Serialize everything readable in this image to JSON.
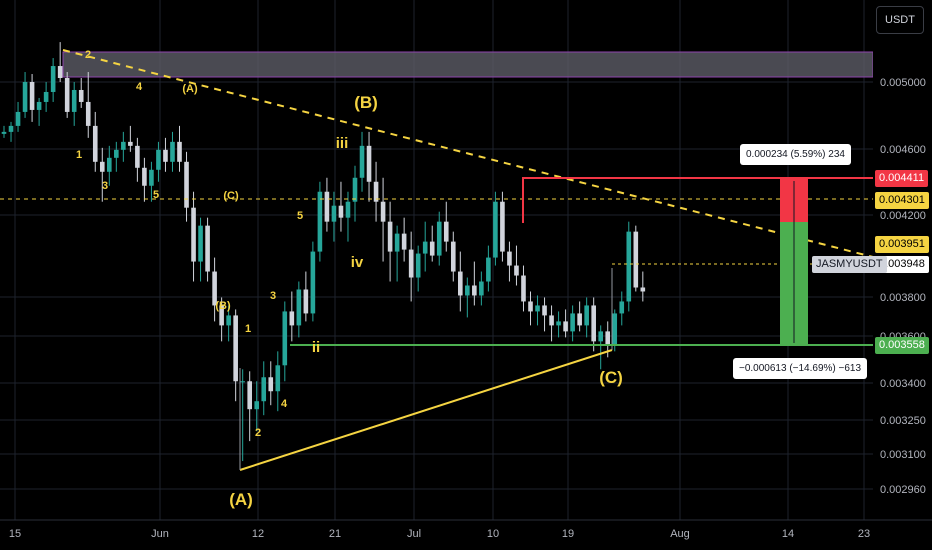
{
  "currency_button": "USDT",
  "symbol_label": "JASMYUSDT",
  "price_axis_ticks": [
    "0.005000",
    "0.004600",
    "0.004200",
    "0.003800",
    "0.003600",
    "0.003400",
    "0.003250",
    "0.003100",
    "0.002960"
  ],
  "time_axis_ticks": [
    "15",
    "Jun",
    "12",
    "21",
    "Jul",
    "10",
    "19",
    "Aug",
    "14",
    "23"
  ],
  "price_tags": [
    {
      "value": "0.004411",
      "bg": "#f23645",
      "fg": "#ffffff"
    },
    {
      "value": "0.004301",
      "bg": "#f5d442",
      "fg": "#000000"
    },
    {
      "value": "0.003951",
      "bg": "#f5d442",
      "fg": "#000000"
    },
    {
      "value": "0.003948",
      "bg": "#ffffff",
      "fg": "#000000"
    },
    {
      "value": "0.003558",
      "bg": "#4caf50",
      "fg": "#ffffff"
    }
  ],
  "measure": {
    "profit_text": "0.000234 (5.59%) 234",
    "loss_text": "−0.000613 (−14.69%) −613"
  },
  "wave_labels": {
    "big": [
      "(A)",
      "(B)",
      "(C)"
    ],
    "small": [
      "2",
      "4",
      "(A)",
      "1",
      "3",
      "5",
      "(C)",
      "(B)",
      "1",
      "2",
      "3",
      "4",
      "5",
      "iii",
      "iv",
      "ii"
    ]
  },
  "colors": {
    "up": "#26a69a",
    "down": "#d1d4dc",
    "wave": "#f5d442",
    "target": "#f23645",
    "stop": "#4caf50",
    "zone": "#8e44ad"
  },
  "chart_data": {
    "type": "candlestick",
    "symbol": "JASMYUSDT",
    "ylim": [
      0.00285,
      0.00535
    ],
    "candles": [
      [
        0.00474,
        0.00478,
        0.00472,
        0.00475
      ],
      [
        0.00475,
        0.0048,
        0.0047,
        0.00478
      ],
      [
        0.00478,
        0.0049,
        0.00475,
        0.00485
      ],
      [
        0.00485,
        0.00505,
        0.00482,
        0.005
      ],
      [
        0.005,
        0.00504,
        0.0048,
        0.00486
      ],
      [
        0.00486,
        0.00492,
        0.00478,
        0.0049
      ],
      [
        0.0049,
        0.005,
        0.00485,
        0.00495
      ],
      [
        0.00495,
        0.00512,
        0.0049,
        0.00508
      ],
      [
        0.00508,
        0.0052,
        0.005,
        0.00502
      ],
      [
        0.00502,
        0.00505,
        0.00482,
        0.00485
      ],
      [
        0.00485,
        0.005,
        0.00478,
        0.00496
      ],
      [
        0.00496,
        0.00502,
        0.00487,
        0.0049
      ],
      [
        0.0049,
        0.00505,
        0.00472,
        0.00478
      ],
      [
        0.00478,
        0.00485,
        0.00455,
        0.0046
      ],
      [
        0.0046,
        0.00467,
        0.0044,
        0.00455
      ],
      [
        0.00455,
        0.00468,
        0.00448,
        0.00462
      ],
      [
        0.00462,
        0.0047,
        0.00455,
        0.00466
      ],
      [
        0.00466,
        0.00475,
        0.0046,
        0.0047
      ],
      [
        0.0047,
        0.00478,
        0.00465,
        0.00468
      ],
      [
        0.00468,
        0.00472,
        0.0045,
        0.00457
      ],
      [
        0.00457,
        0.00462,
        0.0044,
        0.00448
      ],
      [
        0.00448,
        0.0046,
        0.0044,
        0.00456
      ],
      [
        0.00456,
        0.0047,
        0.0045,
        0.00466
      ],
      [
        0.00466,
        0.00472,
        0.00455,
        0.0046
      ],
      [
        0.0046,
        0.00475,
        0.00455,
        0.0047
      ],
      [
        0.0047,
        0.00478,
        0.00455,
        0.0046
      ],
      [
        0.0046,
        0.00465,
        0.0043,
        0.00437
      ],
      [
        0.00437,
        0.00445,
        0.004,
        0.0041
      ],
      [
        0.0041,
        0.00432,
        0.004,
        0.00428
      ],
      [
        0.00428,
        0.00432,
        0.004,
        0.00405
      ],
      [
        0.00405,
        0.00412,
        0.0038,
        0.00388
      ],
      [
        0.00388,
        0.00392,
        0.0037,
        0.00378
      ],
      [
        0.00378,
        0.00388,
        0.0037,
        0.00383
      ],
      [
        0.00383,
        0.00386,
        0.0034,
        0.0035
      ],
      [
        0.0035,
        0.00356,
        0.0031,
        0.0035
      ],
      [
        0.0035,
        0.00355,
        0.0032,
        0.00336
      ],
      [
        0.00336,
        0.0035,
        0.00325,
        0.0034
      ],
      [
        0.0034,
        0.0036,
        0.00333,
        0.00352
      ],
      [
        0.00352,
        0.0036,
        0.00338,
        0.00345
      ],
      [
        0.00345,
        0.00365,
        0.00335,
        0.00358
      ],
      [
        0.00358,
        0.0039,
        0.0035,
        0.00385
      ],
      [
        0.00385,
        0.00395,
        0.0037,
        0.00378
      ],
      [
        0.00378,
        0.004,
        0.00372,
        0.00396
      ],
      [
        0.00396,
        0.00405,
        0.0038,
        0.00384
      ],
      [
        0.00384,
        0.0042,
        0.0038,
        0.00415
      ],
      [
        0.00415,
        0.0045,
        0.0041,
        0.00445
      ],
      [
        0.00445,
        0.00452,
        0.00425,
        0.0043
      ],
      [
        0.0043,
        0.00445,
        0.0042,
        0.00438
      ],
      [
        0.00438,
        0.0045,
        0.00425,
        0.00432
      ],
      [
        0.00432,
        0.00445,
        0.0042,
        0.0044
      ],
      [
        0.0044,
        0.00458,
        0.0043,
        0.00452
      ],
      [
        0.00452,
        0.00475,
        0.00445,
        0.00468
      ],
      [
        0.00468,
        0.00475,
        0.0044,
        0.0045
      ],
      [
        0.0045,
        0.0046,
        0.0043,
        0.0044
      ],
      [
        0.0044,
        0.00452,
        0.0041,
        0.0043
      ],
      [
        0.0043,
        0.0044,
        0.004,
        0.00415
      ],
      [
        0.00415,
        0.00428,
        0.004,
        0.00424
      ],
      [
        0.00424,
        0.00432,
        0.0041,
        0.00416
      ],
      [
        0.00416,
        0.00425,
        0.0039,
        0.00402
      ],
      [
        0.00402,
        0.00418,
        0.00395,
        0.00414
      ],
      [
        0.00414,
        0.0043,
        0.00405,
        0.0042
      ],
      [
        0.0042,
        0.00428,
        0.0041,
        0.00413
      ],
      [
        0.00413,
        0.00435,
        0.00408,
        0.0043
      ],
      [
        0.0043,
        0.0044,
        0.00415,
        0.0042
      ],
      [
        0.0042,
        0.00425,
        0.004,
        0.00405
      ],
      [
        0.00405,
        0.00415,
        0.00385,
        0.00393
      ],
      [
        0.00393,
        0.00402,
        0.00382,
        0.00398
      ],
      [
        0.00398,
        0.0041,
        0.00388,
        0.00393
      ],
      [
        0.00393,
        0.00405,
        0.00388,
        0.004
      ],
      [
        0.004,
        0.00418,
        0.00395,
        0.00412
      ],
      [
        0.00412,
        0.00445,
        0.00408,
        0.0044
      ],
      [
        0.0044,
        0.00445,
        0.0041,
        0.00415
      ],
      [
        0.00415,
        0.0042,
        0.004,
        0.00408
      ],
      [
        0.00408,
        0.00418,
        0.00398,
        0.00403
      ],
      [
        0.00403,
        0.00408,
        0.00385,
        0.0039
      ],
      [
        0.0039,
        0.00395,
        0.00378,
        0.00385
      ],
      [
        0.00385,
        0.00393,
        0.00378,
        0.00388
      ],
      [
        0.00388,
        0.00392,
        0.00375,
        0.00383
      ],
      [
        0.00383,
        0.00388,
        0.0037,
        0.00378
      ],
      [
        0.00378,
        0.00385,
        0.00372,
        0.0038
      ],
      [
        0.0038,
        0.00386,
        0.00372,
        0.00375
      ],
      [
        0.00375,
        0.00388,
        0.0037,
        0.00384
      ],
      [
        0.00384,
        0.0039,
        0.00375,
        0.00378
      ],
      [
        0.00378,
        0.00392,
        0.00372,
        0.00388
      ],
      [
        0.00388,
        0.00392,
        0.00365,
        0.0037
      ],
      [
        0.0037,
        0.00378,
        0.00356,
        0.00375
      ],
      [
        0.00375,
        0.0038,
        0.00362,
        0.00368
      ],
      [
        0.00368,
        0.00386,
        0.00365,
        0.00384
      ],
      [
        0.00384,
        0.00395,
        0.00378,
        0.0039
      ],
      [
        0.0039,
        0.0043,
        0.00385,
        0.00425
      ],
      [
        0.00425,
        0.00428,
        0.00395,
        0.00397
      ],
      [
        0.00397,
        0.00405,
        0.0039,
        0.00395
      ]
    ]
  }
}
